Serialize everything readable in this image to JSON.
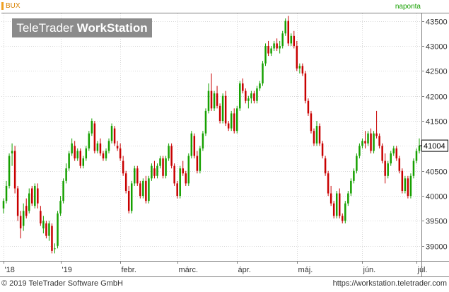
{
  "header": {
    "symbol": "BUX",
    "interval": "naponta"
  },
  "watermark": {
    "brand": "TeleTrader",
    "product": "WorkStation"
  },
  "footer": {
    "copyright": "© 2019 TeleTrader Software GmbH",
    "url": "https://workstation.teletrader.com"
  },
  "colors": {
    "up": "#16a000",
    "down": "#c80000",
    "grid": "#d8d8d8",
    "axis": "#808080",
    "label": "#333333"
  },
  "chart_data": {
    "type": "candlestick",
    "instrument": "BUX",
    "interval": "naponta",
    "ylim": [
      38700,
      43650
    ],
    "yticks": [
      39000,
      39500,
      40000,
      40500,
      41000,
      41500,
      42000,
      42500,
      43000,
      43500
    ],
    "ytick_labels": [
      "39000",
      "39500",
      "40000",
      "40500",
      "41000",
      "41500",
      "42000",
      "42500",
      "43000",
      "43500"
    ],
    "last_value": 41004,
    "last_value_label": "41004",
    "x_labels": [
      {
        "label": "'18",
        "index": 0
      },
      {
        "label": "'19",
        "index": 20
      },
      {
        "label": "febr.",
        "index": 41
      },
      {
        "label": "márc.",
        "index": 61
      },
      {
        "label": "ápr.",
        "index": 82
      },
      {
        "label": "máj.",
        "index": 103
      },
      {
        "label": "jún.",
        "index": 126
      },
      {
        "label": "júl.",
        "index": 145
      }
    ],
    "candles": [
      [
        39750,
        39950,
        39650,
        39900
      ],
      [
        39900,
        40300,
        39850,
        40200
      ],
      [
        40200,
        40850,
        40150,
        40800
      ],
      [
        40850,
        41050,
        40600,
        40900
      ],
      [
        40900,
        41000,
        40050,
        40150
      ],
      [
        40150,
        40200,
        39500,
        39600
      ],
      [
        39600,
        39700,
        39150,
        39350
      ],
      [
        39400,
        39850,
        39300,
        39700
      ],
      [
        39800,
        39950,
        39550,
        39600
      ],
      [
        39700,
        40150,
        39650,
        40050
      ],
      [
        40150,
        40200,
        39800,
        39850
      ],
      [
        39800,
        40250,
        39750,
        40200
      ],
      [
        40150,
        40250,
        39750,
        39850
      ],
      [
        39700,
        39800,
        39400,
        39450
      ],
      [
        39350,
        39600,
        39250,
        39500
      ],
      [
        39450,
        39500,
        39150,
        39200
      ],
      [
        39200,
        39500,
        39100,
        39450
      ],
      [
        39400,
        39450,
        38850,
        38900
      ],
      [
        38950,
        39050,
        38850,
        38950
      ],
      [
        39000,
        39700,
        38950,
        39650
      ],
      [
        39650,
        40000,
        39600,
        39900
      ],
      [
        39900,
        40350,
        39850,
        40300
      ],
      [
        40300,
        40650,
        40250,
        40550
      ],
      [
        40550,
        40900,
        40500,
        40850
      ],
      [
        40850,
        41150,
        40800,
        41050
      ],
      [
        41000,
        41100,
        40700,
        40750
      ],
      [
        40750,
        40950,
        40700,
        40900
      ],
      [
        40900,
        40950,
        40550,
        40600
      ],
      [
        40600,
        40800,
        40550,
        40750
      ],
      [
        40750,
        41000,
        40700,
        40950
      ],
      [
        40950,
        41300,
        40900,
        41250
      ],
      [
        41250,
        41550,
        41200,
        41500
      ],
      [
        41450,
        41500,
        40850,
        40900
      ],
      [
        40900,
        41100,
        40850,
        41050
      ],
      [
        41050,
        41150,
        40800,
        40850
      ],
      [
        40850,
        40900,
        40700,
        40750
      ],
      [
        40750,
        40950,
        40700,
        40900
      ],
      [
        40900,
        41150,
        40850,
        41100
      ],
      [
        41100,
        41450,
        41050,
        41400
      ],
      [
        41350,
        41400,
        41000,
        41050
      ],
      [
        41000,
        41100,
        40900,
        40950
      ],
      [
        40950,
        41050,
        40700,
        40750
      ],
      [
        40700,
        40800,
        40400,
        40450
      ],
      [
        40450,
        40500,
        40050,
        40100
      ],
      [
        40100,
        40200,
        39650,
        39700
      ],
      [
        39700,
        40300,
        39650,
        40250
      ],
      [
        40250,
        40600,
        40200,
        40550
      ],
      [
        40550,
        40600,
        40200,
        40250
      ],
      [
        40250,
        40300,
        39950,
        40000
      ],
      [
        40000,
        40350,
        39950,
        40300
      ],
      [
        40300,
        40400,
        39850,
        39900
      ],
      [
        39900,
        40400,
        39850,
        40350
      ],
      [
        40350,
        40650,
        40300,
        40600
      ],
      [
        40550,
        40700,
        40350,
        40400
      ],
      [
        40400,
        40650,
        40350,
        40600
      ],
      [
        40600,
        40800,
        40550,
        40750
      ],
      [
        40750,
        40800,
        40350,
        40400
      ],
      [
        40400,
        40800,
        40350,
        40750
      ],
      [
        40750,
        41050,
        40700,
        41000
      ],
      [
        41000,
        41050,
        40550,
        40600
      ],
      [
        40600,
        40650,
        40200,
        40250
      ],
      [
        40250,
        40300,
        39950,
        40000
      ],
      [
        40000,
        40600,
        39950,
        40550
      ],
      [
        40550,
        40700,
        40400,
        40450
      ],
      [
        40450,
        40500,
        40200,
        40250
      ],
      [
        40250,
        40850,
        40200,
        40800
      ],
      [
        40800,
        41300,
        40750,
        41250
      ],
      [
        41200,
        41250,
        40750,
        40800
      ],
      [
        40800,
        40900,
        40450,
        40500
      ],
      [
        40500,
        41000,
        40450,
        40950
      ],
      [
        40950,
        41300,
        40900,
        41250
      ],
      [
        41250,
        41750,
        41200,
        41700
      ],
      [
        41700,
        42250,
        41650,
        42100
      ],
      [
        42100,
        42450,
        41700,
        41750
      ],
      [
        41750,
        42100,
        41700,
        42050
      ],
      [
        42050,
        42200,
        41750,
        41800
      ],
      [
        41800,
        41850,
        41450,
        41500
      ],
      [
        41500,
        42050,
        41450,
        42000
      ],
      [
        42000,
        42100,
        41400,
        41450
      ],
      [
        41450,
        41500,
        41300,
        41350
      ],
      [
        41350,
        41700,
        41300,
        41650
      ],
      [
        41650,
        41750,
        41250,
        41300
      ],
      [
        41300,
        41800,
        41250,
        41750
      ],
      [
        41750,
        42300,
        41700,
        42250
      ],
      [
        42250,
        42350,
        42050,
        42100
      ],
      [
        42100,
        42150,
        41850,
        41900
      ],
      [
        41900,
        42000,
        41750,
        41950
      ],
      [
        41950,
        42100,
        41850,
        42050
      ],
      [
        42050,
        42100,
        41850,
        41900
      ],
      [
        41900,
        42200,
        41850,
        42150
      ],
      [
        42150,
        42300,
        42100,
        42250
      ],
      [
        42250,
        42700,
        42200,
        42650
      ],
      [
        42650,
        43050,
        42600,
        43000
      ],
      [
        43000,
        43100,
        42800,
        42850
      ],
      [
        42850,
        43000,
        42800,
        42950
      ],
      [
        42950,
        43100,
        42900,
        43050
      ],
      [
        43050,
        43150,
        42900,
        42950
      ],
      [
        42950,
        43100,
        42850,
        43000
      ],
      [
        43000,
        43300,
        42950,
        43250
      ],
      [
        43250,
        43550,
        43200,
        43500
      ],
      [
        43500,
        43600,
        43000,
        43050
      ],
      [
        43050,
        43250,
        43000,
        43200
      ],
      [
        43200,
        43300,
        42950,
        43000
      ],
      [
        43000,
        43100,
        42500,
        42550
      ],
      [
        42550,
        42650,
        42450,
        42600
      ],
      [
        42600,
        42650,
        42400,
        42450
      ],
      [
        42450,
        42500,
        41850,
        41900
      ],
      [
        41900,
        41950,
        41600,
        41650
      ],
      [
        41650,
        41700,
        41250,
        41300
      ],
      [
        41300,
        41350,
        41000,
        41050
      ],
      [
        41050,
        41500,
        41000,
        41400
      ],
      [
        41400,
        41450,
        41000,
        41050
      ],
      [
        41050,
        41100,
        40750,
        40800
      ],
      [
        40750,
        40800,
        40400,
        40450
      ],
      [
        40450,
        40500,
        40000,
        40050
      ],
      [
        40050,
        40200,
        39800,
        39850
      ],
      [
        39850,
        39900,
        39550,
        39600
      ],
      [
        39600,
        40100,
        39550,
        40050
      ],
      [
        40050,
        40150,
        39550,
        39600
      ],
      [
        39600,
        39650,
        39450,
        39500
      ],
      [
        39500,
        39900,
        39450,
        39850
      ],
      [
        39850,
        40100,
        39800,
        40050
      ],
      [
        40050,
        40350,
        40000,
        40300
      ],
      [
        40300,
        40550,
        40250,
        40500
      ],
      [
        40500,
        40850,
        40450,
        40800
      ],
      [
        40800,
        41050,
        40750,
        41000
      ],
      [
        41000,
        41150,
        40950,
        41100
      ],
      [
        41100,
        41300,
        40950,
        41050
      ],
      [
        41050,
        41300,
        41000,
        41250
      ],
      [
        41250,
        41350,
        40850,
        40900
      ],
      [
        40900,
        41300,
        40850,
        41250
      ],
      [
        41250,
        41700,
        41150,
        41200
      ],
      [
        41200,
        41250,
        40950,
        41000
      ],
      [
        41000,
        41050,
        40650,
        40700
      ],
      [
        40700,
        40850,
        40250,
        40400
      ],
      [
        40400,
        40700,
        40350,
        40650
      ],
      [
        40650,
        40900,
        40600,
        40850
      ],
      [
        40850,
        41000,
        40800,
        40950
      ],
      [
        40950,
        41000,
        40700,
        40750
      ],
      [
        40750,
        40800,
        40450,
        40500
      ],
      [
        40500,
        40550,
        40050,
        40100
      ],
      [
        40100,
        40400,
        40050,
        40350
      ],
      [
        40350,
        40400,
        39950,
        40000
      ],
      [
        40000,
        40450,
        39950,
        40400
      ],
      [
        40400,
        40750,
        40350,
        40700
      ],
      [
        40700,
        40950,
        40650,
        40900
      ],
      [
        40900,
        41150,
        40850,
        41004
      ]
    ]
  }
}
